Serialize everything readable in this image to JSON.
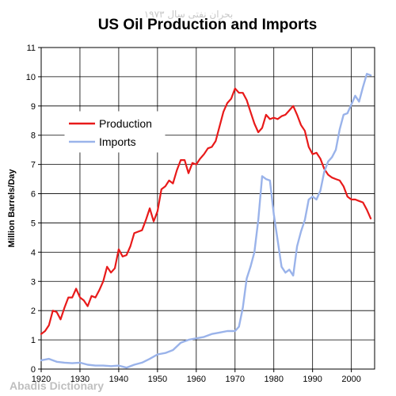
{
  "watermark_top": "بحران نفتی سال ۱۹۷۳",
  "watermark_bottom": "Abadis Dictionary",
  "chart_data": {
    "type": "line",
    "title": "US Oil Production and Imports",
    "xlabel": "",
    "ylabel": "Million Barrels/Day",
    "xlim": [
      1920,
      2006
    ],
    "ylim": [
      0,
      11
    ],
    "x_ticks": [
      1920,
      1930,
      1940,
      1950,
      1960,
      1970,
      1980,
      1990,
      2000
    ],
    "y_ticks": [
      0,
      1,
      2,
      3,
      4,
      5,
      6,
      7,
      8,
      9,
      10,
      11
    ],
    "grid": true,
    "legend_position": "upper-left",
    "series": [
      {
        "name": "Production",
        "color": "#e81a1a",
        "x": [
          1920,
          1921,
          1922,
          1923,
          1924,
          1925,
          1926,
          1927,
          1928,
          1929,
          1930,
          1931,
          1932,
          1933,
          1934,
          1935,
          1936,
          1937,
          1938,
          1939,
          1940,
          1941,
          1942,
          1943,
          1944,
          1945,
          1946,
          1947,
          1948,
          1949,
          1950,
          1951,
          1952,
          1953,
          1954,
          1955,
          1956,
          1957,
          1958,
          1959,
          1960,
          1961,
          1962,
          1963,
          1964,
          1965,
          1966,
          1967,
          1968,
          1969,
          1970,
          1971,
          1972,
          1973,
          1974,
          1975,
          1976,
          1977,
          1978,
          1979,
          1980,
          1981,
          1982,
          1983,
          1984,
          1985,
          1986,
          1987,
          1988,
          1989,
          1990,
          1991,
          1992,
          1993,
          1994,
          1995,
          1996,
          1997,
          1998,
          1999,
          2000,
          2001,
          2002,
          2003,
          2004,
          2005
        ],
        "values": [
          1.2,
          1.3,
          1.5,
          2.0,
          1.95,
          1.7,
          2.1,
          2.45,
          2.45,
          2.75,
          2.45,
          2.35,
          2.15,
          2.5,
          2.45,
          2.7,
          3.0,
          3.5,
          3.3,
          3.45,
          4.1,
          3.85,
          3.9,
          4.2,
          4.65,
          4.7,
          4.75,
          5.1,
          5.5,
          5.05,
          5.4,
          6.15,
          6.25,
          6.45,
          6.35,
          6.8,
          7.15,
          7.15,
          6.7,
          7.05,
          7.0,
          7.2,
          7.35,
          7.55,
          7.6,
          7.8,
          8.3,
          8.8,
          9.1,
          9.25,
          9.6,
          9.45,
          9.45,
          9.2,
          8.8,
          8.4,
          8.1,
          8.25,
          8.7,
          8.55,
          8.6,
          8.55,
          8.65,
          8.7,
          8.85,
          9.0,
          8.7,
          8.35,
          8.15,
          7.6,
          7.35,
          7.4,
          7.2,
          6.85,
          6.65,
          6.55,
          6.5,
          6.45,
          6.25,
          5.9,
          5.8,
          5.8,
          5.75,
          5.7,
          5.45,
          5.15
        ]
      },
      {
        "name": "Imports",
        "color": "#9ab3ea",
        "x": [
          1920,
          1922,
          1924,
          1926,
          1928,
          1930,
          1932,
          1934,
          1936,
          1938,
          1940,
          1942,
          1944,
          1946,
          1948,
          1950,
          1952,
          1954,
          1956,
          1958,
          1960,
          1962,
          1964,
          1966,
          1968,
          1970,
          1971,
          1972,
          1973,
          1974,
          1975,
          1976,
          1977,
          1978,
          1979,
          1980,
          1981,
          1982,
          1983,
          1984,
          1985,
          1986,
          1987,
          1988,
          1989,
          1990,
          1991,
          1992,
          1993,
          1994,
          1995,
          1996,
          1997,
          1998,
          1999,
          2000,
          2001,
          2002,
          2003,
          2004,
          2005
        ],
        "values": [
          0.3,
          0.35,
          0.25,
          0.22,
          0.2,
          0.22,
          0.15,
          0.12,
          0.12,
          0.1,
          0.12,
          0.05,
          0.15,
          0.22,
          0.35,
          0.5,
          0.55,
          0.65,
          0.9,
          1.0,
          1.05,
          1.1,
          1.2,
          1.25,
          1.3,
          1.3,
          1.45,
          2.1,
          3.1,
          3.5,
          4.0,
          5.1,
          6.6,
          6.5,
          6.45,
          5.3,
          4.4,
          3.5,
          3.3,
          3.4,
          3.2,
          4.2,
          4.7,
          5.1,
          5.8,
          5.9,
          5.8,
          6.1,
          6.75,
          7.1,
          7.25,
          7.5,
          8.2,
          8.7,
          8.75,
          9.05,
          9.35,
          9.15,
          9.65,
          10.1,
          10.05
        ]
      }
    ]
  }
}
